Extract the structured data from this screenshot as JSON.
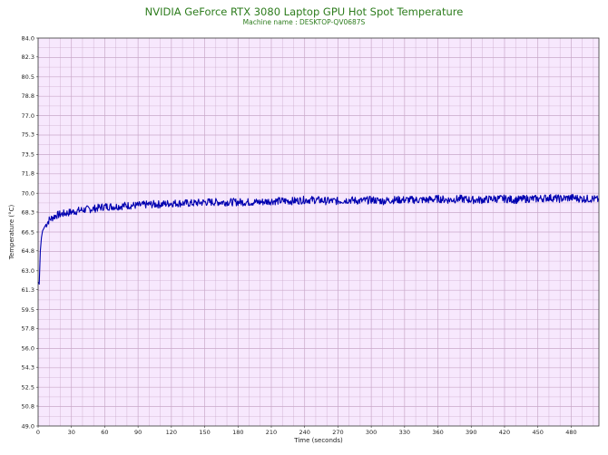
{
  "chart_data": {
    "type": "line",
    "title": "NVIDIA GeForce RTX 3080 Laptop GPU Hot Spot Temperature",
    "subtitle": "Machine name : DESKTOP-QV0687S",
    "xlabel": "Time (seconds)",
    "ylabel": "Temperature (°C)",
    "xlim": [
      0,
      505
    ],
    "ylim": [
      49.0,
      84.0
    ],
    "grid": true,
    "x_ticks": [
      "0",
      "30",
      "60",
      "90",
      "120",
      "150",
      "180",
      "210",
      "240",
      "270",
      "300",
      "330",
      "360",
      "390",
      "420",
      "450",
      "480"
    ],
    "y_ticks": [
      "84.0",
      "82.3",
      "80.5",
      "78.8",
      "77.0",
      "75.3",
      "73.5",
      "71.8",
      "70.0",
      "68.3",
      "66.5",
      "64.8",
      "63.0",
      "61.3",
      "59.5",
      "57.8",
      "56.0",
      "54.3",
      "52.5",
      "50.8",
      "49.0"
    ],
    "series": [
      {
        "color": "#0000b0",
        "x": [
          0,
          1,
          2,
          3,
          4,
          6,
          8,
          10,
          13,
          16,
          20,
          25,
          30,
          40,
          50,
          60,
          70,
          80,
          90,
          100,
          110,
          120,
          130,
          140,
          150,
          160,
          170,
          180,
          190,
          200,
          210,
          220,
          230,
          240,
          250,
          260,
          270,
          280,
          290,
          300,
          310,
          320,
          330,
          340,
          350,
          360,
          370,
          380,
          390,
          400,
          410,
          420,
          430,
          440,
          450,
          460,
          470,
          480,
          490,
          500,
          505
        ],
        "y": [
          62.0,
          61.8,
          64.8,
          66.0,
          66.6,
          67.0,
          67.3,
          67.6,
          67.8,
          68.0,
          68.1,
          68.2,
          68.3,
          68.5,
          68.6,
          68.8,
          68.8,
          68.9,
          68.9,
          69.0,
          69.0,
          69.1,
          69.1,
          69.1,
          69.2,
          69.2,
          69.2,
          69.2,
          69.2,
          69.2,
          69.3,
          69.3,
          69.3,
          69.4,
          69.4,
          69.3,
          69.3,
          69.4,
          69.3,
          69.4,
          69.3,
          69.4,
          69.4,
          69.4,
          69.4,
          69.5,
          69.4,
          69.5,
          69.4,
          69.4,
          69.5,
          69.5,
          69.4,
          69.5,
          69.5,
          69.6,
          69.5,
          69.6,
          69.5,
          69.5,
          69.4
        ]
      }
    ],
    "plot_background": "#f7e8fd",
    "grid_color": "#c9a8c9",
    "title_color": "#2e7d1e"
  }
}
